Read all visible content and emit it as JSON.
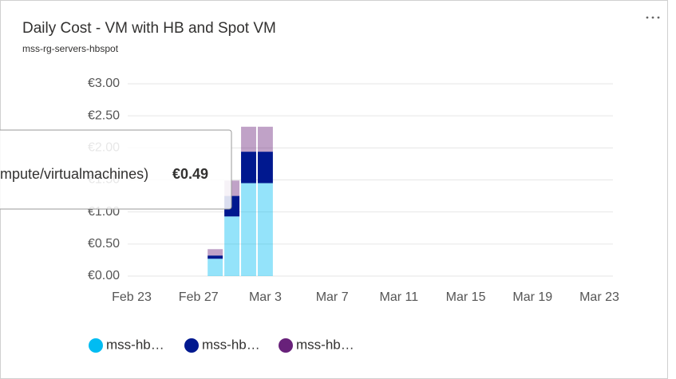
{
  "chart_data": {
    "type": "stacked-bar",
    "title": "Daily Cost - VM with HB and Spot VM",
    "subtitle": "mss-rg-servers-hbspot",
    "x": [
      "Feb 28",
      "Mar 1",
      "Mar 2",
      "Mar 3"
    ],
    "xticks": [
      "Feb 23",
      "Feb 27",
      "Mar 3",
      "Mar 7",
      "Mar 11",
      "Mar 15",
      "Mar 19",
      "Mar 23"
    ],
    "series": [
      {
        "name": "mss-hb…",
        "color": "#00bcf2",
        "values": [
          0.27,
          0.93,
          1.45,
          1.45
        ]
      },
      {
        "name": "mss-hb…",
        "color": "#00188f",
        "values": [
          0.05,
          0.32,
          0.49,
          0.49
        ]
      },
      {
        "name": "mss-hb…",
        "color": "#68217a",
        "values": [
          0.1,
          0.24,
          0.39,
          0.39
        ]
      }
    ],
    "highlighted_series": 1,
    "ylim": [
      0,
      3
    ],
    "yticks": [
      {
        "value": 0,
        "label": "€0.00"
      },
      {
        "value": 0.5,
        "label": "€0.50"
      },
      {
        "value": 1,
        "label": "€1.00"
      },
      {
        "value": 1.5,
        "label": "€1.50"
      },
      {
        "value": 2,
        "label": "€2.00"
      },
      {
        "value": 2.5,
        "label": "€2.50"
      },
      {
        "value": 3,
        "label": "€3.00"
      }
    ],
    "grid": true,
    "tooltip": {
      "text": "mpute/virtualmachines)",
      "value": "€0.49"
    }
  }
}
